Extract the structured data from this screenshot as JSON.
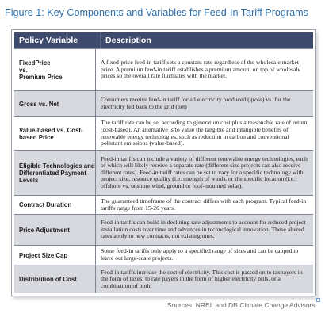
{
  "figure": {
    "title": "Figure 1: Key Components and Variables for Feed-In Tariff Programs",
    "source": "Sources: NREL and DB Climate Change Advisors."
  },
  "table": {
    "headers": {
      "variable": "Policy Variable",
      "description": "Description"
    },
    "rows": [
      {
        "variable": "FixedPrice\nvs.\nPremium Price",
        "description": "A fixed-price feed-in tariff sets a constant rate regardless of the wholesale market price. A premium feed-in tariff establishes a premium amount on top of wholesale prices so the overall rate fluctuates with the market."
      },
      {
        "variable": "Gross vs. Net",
        "description": "Consumers receive feed-in tariff for all electricity produced (gross) vs. for the electricity fed back to the grid (net)"
      },
      {
        "variable": "Value-based vs. Cost-based Price",
        "description": "The tariff rate can be set according to generation cost plus a reasonable rate of return (cost-based). An alternative is to value the tangible and intangible benefits of renewable energy technologies, such as reduction in carbon and conventional pollutant emissions (value-based)."
      },
      {
        "variable": "Eligible Technologies and Differentiated Payment Levels",
        "description": "Feed-in tariffs can include a variety of different renewable energy technologies, each of which will likely receive a separate rate (different size projects can also receive different rates). Feed-in tariff rates can be set to vary for a specific technology with project size, resource quality (i.e. strength of wind), or the specific location (i.e. offshore vs. onshore wind, ground or roof-mounted solar)."
      },
      {
        "variable": "Contract Duration",
        "description": "The guaranteed timeframe of the contract differs with each program. Typical feed-in tariffs range from 15-20 years."
      },
      {
        "variable": "Price Adjustment",
        "description": "Feed-in tariffs can build in declining rate adjustments to account for reduced project installation costs over time and advances in technological innovation. These altered rates apply to new contracts, not existing ones."
      },
      {
        "variable": "Project Size Cap",
        "description": "Some feed-in tariffs only apply to a specified range of sizes and can be capped to leave out large-scale projects."
      },
      {
        "variable": "Distribution of Cost",
        "description": "Feed-in tariffs increase the cost of electricity. This cost is passed on to taxpayers in the form of taxes, to rate payers in the form of higher electricity bills, or a combination of both."
      }
    ]
  }
}
